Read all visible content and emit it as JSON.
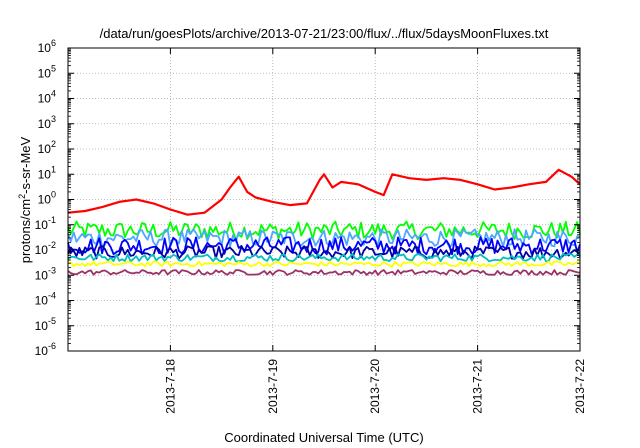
{
  "chart_data": {
    "type": "line",
    "title": "/data/run/goesPlots/archive/2013-07-21/23:00/flux/../flux/5daysMoonFluxes.txt",
    "xlabel": "Coordinated Universal Time (UTC)",
    "ylabel": {
      "prefix": "protons/cm",
      "sup": "2",
      "suffix": "-s-sr-MeV"
    },
    "yscale": "log",
    "ylim": [
      1e-06,
      1000000.0
    ],
    "y_ticks": [
      {
        "base": "10",
        "exp": "-6",
        "value": 1e-06
      },
      {
        "base": "10",
        "exp": "-5",
        "value": 1e-05
      },
      {
        "base": "10",
        "exp": "-4",
        "value": 0.0001
      },
      {
        "base": "10",
        "exp": "-3",
        "value": 0.001
      },
      {
        "base": "10",
        "exp": "-2",
        "value": 0.01
      },
      {
        "base": "10",
        "exp": "-1",
        "value": 0.1
      },
      {
        "base": "10",
        "exp": "0",
        "value": 1
      },
      {
        "base": "10",
        "exp": "1",
        "value": 10
      },
      {
        "base": "10",
        "exp": "2",
        "value": 100
      },
      {
        "base": "10",
        "exp": "3",
        "value": 1000
      },
      {
        "base": "10",
        "exp": "4",
        "value": 10000
      },
      {
        "base": "10",
        "exp": "5",
        "value": 100000
      },
      {
        "base": "10",
        "exp": "6",
        "value": 1000000
      }
    ],
    "xlim": [
      "2013-07-17 00:00",
      "2013-07-22 00:00"
    ],
    "x_ticks": [
      "2013-7-18",
      "2013-7-19",
      "2013-7-20",
      "2013-7-21",
      "2013-7-22"
    ],
    "grid": true,
    "series": [
      {
        "color": "#ff0000",
        "x": [
          "2013-07-17 00:00",
          "2013-07-17 04:00",
          "2013-07-17 08:00",
          "2013-07-17 12:00",
          "2013-07-17 16:00",
          "2013-07-17 20:00",
          "2013-07-18 00:00",
          "2013-07-18 04:00",
          "2013-07-18 08:00",
          "2013-07-18 12:00",
          "2013-07-18 14:00",
          "2013-07-18 16:00",
          "2013-07-18 18:00",
          "2013-07-18 20:00",
          "2013-07-19 00:00",
          "2013-07-19 04:00",
          "2013-07-19 08:00",
          "2013-07-19 11:00",
          "2013-07-19 12:00",
          "2013-07-19 14:00",
          "2013-07-19 16:00",
          "2013-07-19 20:00",
          "2013-07-20 00:00",
          "2013-07-20 02:00",
          "2013-07-20 04:00",
          "2013-07-20 08:00",
          "2013-07-20 12:00",
          "2013-07-20 16:00",
          "2013-07-20 20:00",
          "2013-07-21 00:00",
          "2013-07-21 04:00",
          "2013-07-21 08:00",
          "2013-07-21 12:00",
          "2013-07-21 16:00",
          "2013-07-21 19:00",
          "2013-07-21 22:00",
          "2013-07-22 00:00"
        ],
        "y": [
          0.3,
          0.35,
          0.5,
          0.8,
          1.0,
          0.7,
          0.4,
          0.25,
          0.3,
          1.0,
          3.0,
          8.0,
          2.0,
          1.2,
          0.8,
          0.6,
          0.7,
          6.0,
          10.0,
          3.0,
          5.0,
          4.0,
          2.0,
          1.5,
          10.0,
          7.0,
          6.0,
          7.0,
          6.0,
          4.0,
          2.5,
          3.0,
          4.0,
          5.0,
          15.0,
          8.0,
          4.0
        ]
      },
      {
        "color": "#00ff00",
        "x": [
          "2013-07-17 00:00",
          "2013-07-22 00:00"
        ],
        "y": [
          0.06,
          0.06
        ],
        "jitter": 0.35
      },
      {
        "color": "#4da6ff",
        "x": [
          "2013-07-17 00:00",
          "2013-07-22 00:00"
        ],
        "y": [
          0.03,
          0.03
        ],
        "jitter": 0.35
      },
      {
        "color": "#0000ff",
        "x": [
          "2013-07-17 00:00",
          "2013-07-22 00:00"
        ],
        "y": [
          0.015,
          0.015
        ],
        "jitter": 0.35
      },
      {
        "color": "#0000aa",
        "x": [
          "2013-07-17 00:00",
          "2013-07-22 00:00"
        ],
        "y": [
          0.008,
          0.008
        ],
        "jitter": 0.25
      },
      {
        "color": "#00bfbf",
        "x": [
          "2013-07-17 00:00",
          "2013-07-22 00:00"
        ],
        "y": [
          0.005,
          0.005
        ],
        "jitter": 0.15
      },
      {
        "color": "#ffff00",
        "x": [
          "2013-07-17 00:00",
          "2013-07-22 00:00"
        ],
        "y": [
          0.0028,
          0.0028
        ],
        "jitter": 0.1
      },
      {
        "color": "#993366",
        "x": [
          "2013-07-17 00:00",
          "2013-07-22 00:00"
        ],
        "y": [
          0.0013,
          0.0013
        ],
        "jitter": 0.1
      }
    ]
  }
}
